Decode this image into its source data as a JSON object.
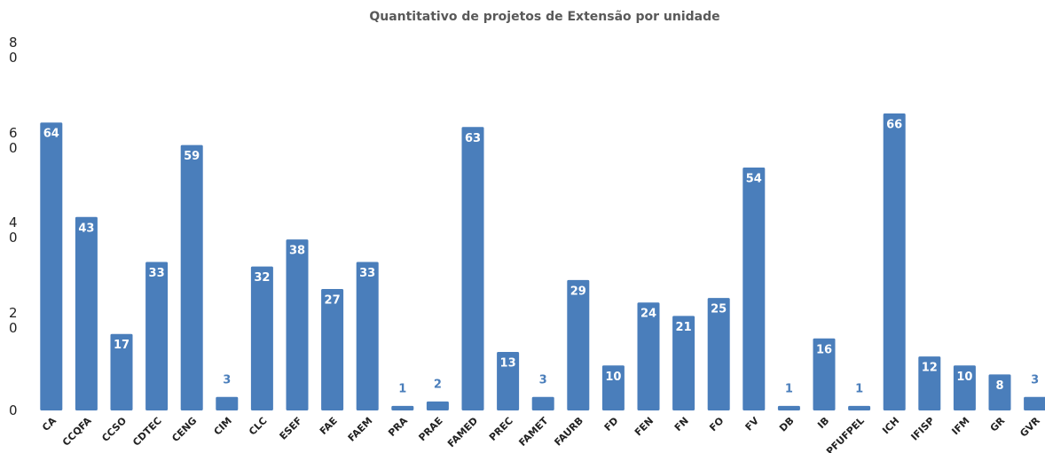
{
  "chart_data": {
    "type": "bar",
    "title": "Quantitativo de projetos de Extensão por unidade",
    "categories": [
      "CA",
      "CCQFA",
      "CCSO",
      "CDTEC",
      "CENG",
      "CIM",
      "CLC",
      "ESEF",
      "FAE",
      "FAEM",
      "PRA",
      "PRAE",
      "FAMED",
      "PREC",
      "FAMET",
      "FAURB",
      "FD",
      "FEN",
      "FN",
      "FO",
      "FV",
      "DB",
      "IB",
      "PFUFPEL",
      "ICH",
      "IFISP",
      "IFM",
      "GR",
      "GVR"
    ],
    "values": [
      64,
      43,
      17,
      33,
      59,
      3,
      32,
      38,
      27,
      33,
      1,
      2,
      63,
      13,
      3,
      29,
      10,
      24,
      21,
      25,
      54,
      1,
      16,
      1,
      66,
      12,
      10,
      8,
      3
    ],
    "color": "#4a7ebb",
    "ylim": [
      0,
      80
    ],
    "yticks": [
      0,
      20,
      40,
      60,
      80
    ],
    "grid": false
  }
}
